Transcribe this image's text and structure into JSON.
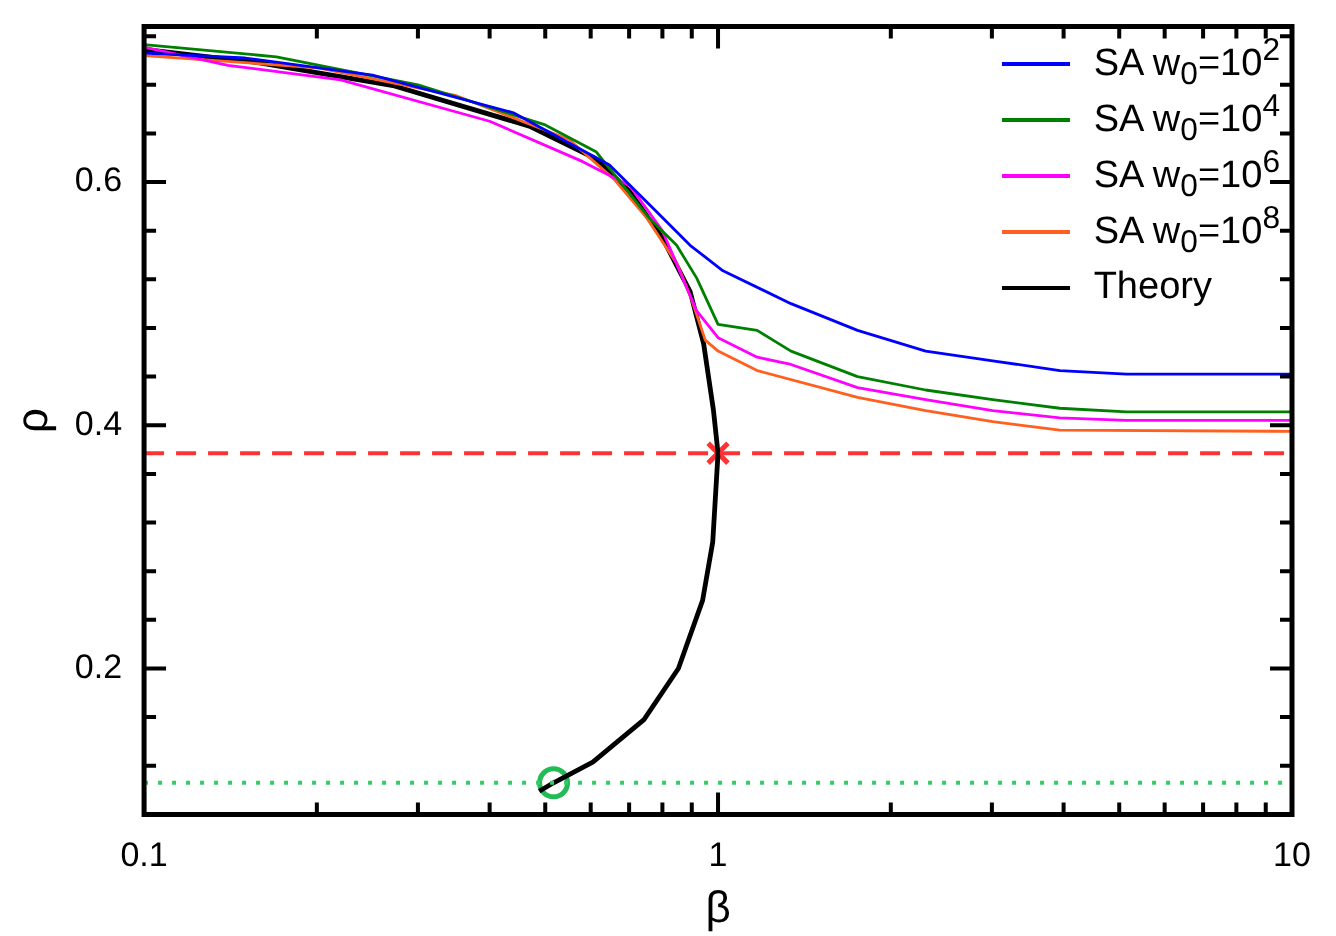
{
  "chart_data": {
    "type": "line",
    "xlabel": "β",
    "ylabel": "ρ",
    "log": "x",
    "xlim": [
      0.1,
      10
    ],
    "ylim": [
      0.08,
      0.728
    ],
    "xticks": [
      0.1,
      {
        "value": 0.2,
        "label": null
      },
      {
        "value": 0.3,
        "label": null
      },
      {
        "value": 0.4,
        "label": null
      },
      {
        "value": 0.5,
        "label": null
      },
      {
        "value": 0.6,
        "label": null
      },
      {
        "value": 0.7,
        "label": null
      },
      {
        "value": 0.8,
        "label": null
      },
      {
        "value": 0.9,
        "label": null
      },
      1,
      {
        "value": 2,
        "label": null
      },
      {
        "value": 3,
        "label": null
      },
      {
        "value": 4,
        "label": null
      },
      {
        "value": 5,
        "label": null
      },
      {
        "value": 6,
        "label": null
      },
      {
        "value": 7,
        "label": null
      },
      {
        "value": 8,
        "label": null
      },
      {
        "value": 9,
        "label": null
      },
      10
    ],
    "yticks": [
      {
        "value": 0.08,
        "label": null
      },
      {
        "value": 0.12,
        "label": null
      },
      {
        "value": 0.16,
        "label": null
      },
      0.2,
      {
        "value": 0.24,
        "label": null
      },
      {
        "value": 0.28,
        "label": null
      },
      {
        "value": 0.32,
        "label": null
      },
      {
        "value": 0.36,
        "label": null
      },
      0.4,
      {
        "value": 0.44,
        "label": null
      },
      {
        "value": 0.48,
        "label": null
      },
      {
        "value": 0.52,
        "label": null
      },
      {
        "value": 0.56,
        "label": null
      },
      0.6,
      {
        "value": 0.64,
        "label": null
      },
      {
        "value": 0.68,
        "label": null
      },
      {
        "value": 0.72,
        "label": null
      }
    ],
    "legend": "top right",
    "line_style": "solid",
    "series": [
      {
        "name": "SA w$_{0}$=10$^{2}$",
        "color": "#0000ff",
        "x": [
          0.1,
          0.15,
          0.25,
          0.44,
          0.647,
          0.78,
          0.894,
          1.02,
          1.34,
          1.75,
          2.3,
          3.01,
          3.94,
          5.15,
          10
        ],
        "values": [
          0.706,
          0.702,
          0.688,
          0.657,
          0.614,
          0.576,
          0.548,
          0.527,
          0.5,
          0.478,
          0.461,
          0.453,
          0.445,
          0.442,
          0.442
        ]
      },
      {
        "name": "SA w$_{0}$=10$^{4}$",
        "color": "#008000",
        "x": [
          0.1,
          0.17,
          0.3,
          0.5,
          0.613,
          0.76,
          0.847,
          0.918,
          1.0,
          1.17,
          1.34,
          1.75,
          2.3,
          3.01,
          3.94,
          5.15,
          10
        ],
        "values": [
          0.713,
          0.703,
          0.68,
          0.647,
          0.625,
          0.57,
          0.548,
          0.521,
          0.483,
          0.478,
          0.461,
          0.44,
          0.429,
          0.421,
          0.414,
          0.411,
          0.411
        ]
      },
      {
        "name": "SA w$_{0}$=10$^{6}$",
        "color": "#ff00ff",
        "x": [
          0.1,
          0.14,
          0.22,
          0.4,
          0.58,
          0.702,
          0.8,
          0.918,
          1.0,
          1.17,
          1.34,
          1.75,
          2.3,
          3.01,
          3.94,
          5.15,
          10
        ],
        "values": [
          0.711,
          0.696,
          0.684,
          0.65,
          0.617,
          0.597,
          0.56,
          0.494,
          0.472,
          0.456,
          0.45,
          0.431,
          0.421,
          0.412,
          0.406,
          0.404,
          0.404
        ]
      },
      {
        "name": "SA w$_{0}$=10$^{8}$",
        "color": "#ff6020",
        "x": [
          0.1,
          0.2,
          0.35,
          0.55,
          0.66,
          0.75,
          0.85,
          0.9,
          0.95,
          1.0,
          1.17,
          1.75,
          2.3,
          3.01,
          3.94,
          10
        ],
        "values": [
          0.704,
          0.694,
          0.671,
          0.635,
          0.602,
          0.571,
          0.532,
          0.503,
          0.47,
          0.461,
          0.445,
          0.423,
          0.412,
          0.403,
          0.396,
          0.395
        ]
      },
      {
        "name": "Theory",
        "color": "#000000",
        "x": [
          0.1,
          0.159,
          0.273,
          0.469,
          0.613,
          0.702,
          0.8,
          0.894,
          0.944,
          0.982,
          1.0,
          0.979,
          0.94,
          0.853,
          0.743,
          0.605,
          0.517,
          0.488
        ],
        "values": [
          0.709,
          0.698,
          0.679,
          0.646,
          0.619,
          0.592,
          0.554,
          0.51,
          0.467,
          0.412,
          0.377,
          0.304,
          0.256,
          0.2,
          0.158,
          0.123,
          0.106,
          0.099
        ]
      },
      {
        "type": "scatter",
        "marker": "cross",
        "color": "#ff3333",
        "x": [
          1
        ],
        "values": [
          0.377
        ]
      },
      {
        "type": "scatter",
        "marker": "circle",
        "color": "#22bb55",
        "x": [
          0.517
        ],
        "values": [
          0.106
        ]
      }
    ],
    "ref_lines": [
      {
        "axis": "y",
        "value": 0.377,
        "color": "#ff3333",
        "line_style": "dashed"
      },
      {
        "axis": "y",
        "value": 0.106,
        "color": "#33cc66",
        "line_style": "dotted"
      }
    ]
  }
}
